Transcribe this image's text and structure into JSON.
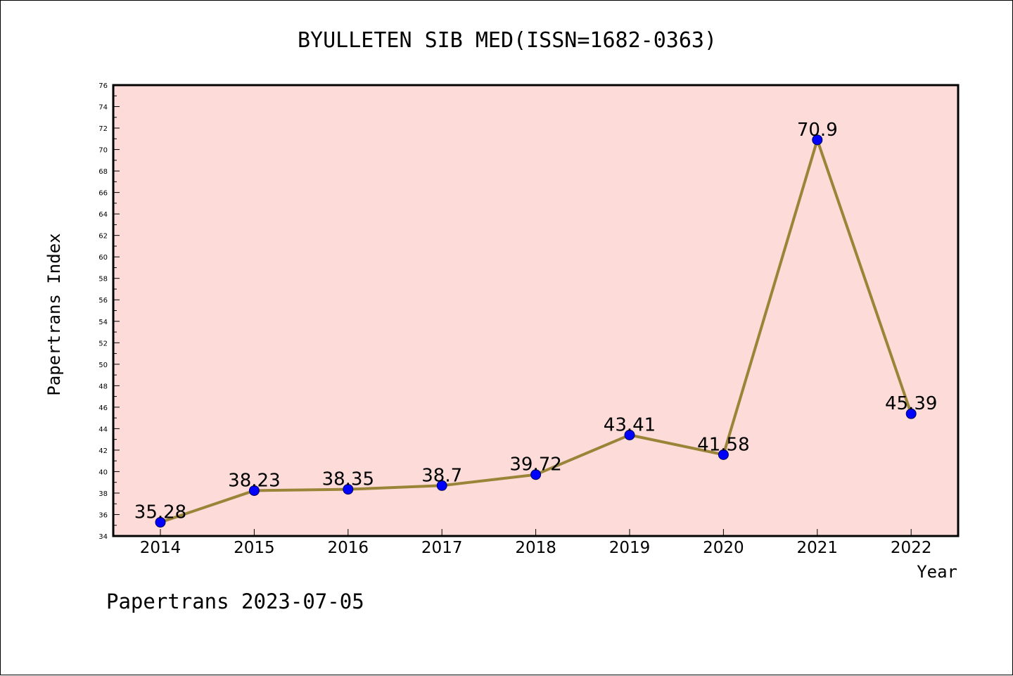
{
  "chart_data": {
    "type": "line",
    "title": "BYULLETEN SIB MED(ISSN=1682-0363)",
    "xlabel": "Year",
    "ylabel": "Papertrans Index",
    "categories": [
      "2014",
      "2015",
      "2016",
      "2017",
      "2018",
      "2019",
      "2020",
      "2021",
      "2022"
    ],
    "series": [
      {
        "values": [
          35.28,
          38.23,
          38.35,
          38.7,
          39.72,
          43.41,
          41.58,
          70.9,
          45.39
        ],
        "labels": [
          "35.28",
          "38.23",
          "38.35",
          "38.7",
          "39.72",
          "43.41",
          "41.58",
          "70.9",
          "45.39"
        ]
      }
    ],
    "ylim": [
      34,
      76
    ],
    "yticks": [
      "34",
      "36",
      "38",
      "40",
      "42",
      "44",
      "46",
      "48",
      "50",
      "52",
      "54",
      "56",
      "58",
      "60",
      "62",
      "64",
      "66",
      "68",
      "70",
      "72",
      "74",
      "76"
    ],
    "grid": false,
    "legend": "none",
    "colors": {
      "plot_background": "#fddbd8",
      "line": "#9a8438",
      "marker_fill": "#0000ff",
      "marker_edge": "#00005a"
    }
  },
  "footer": "Papertrans 2023-07-05"
}
